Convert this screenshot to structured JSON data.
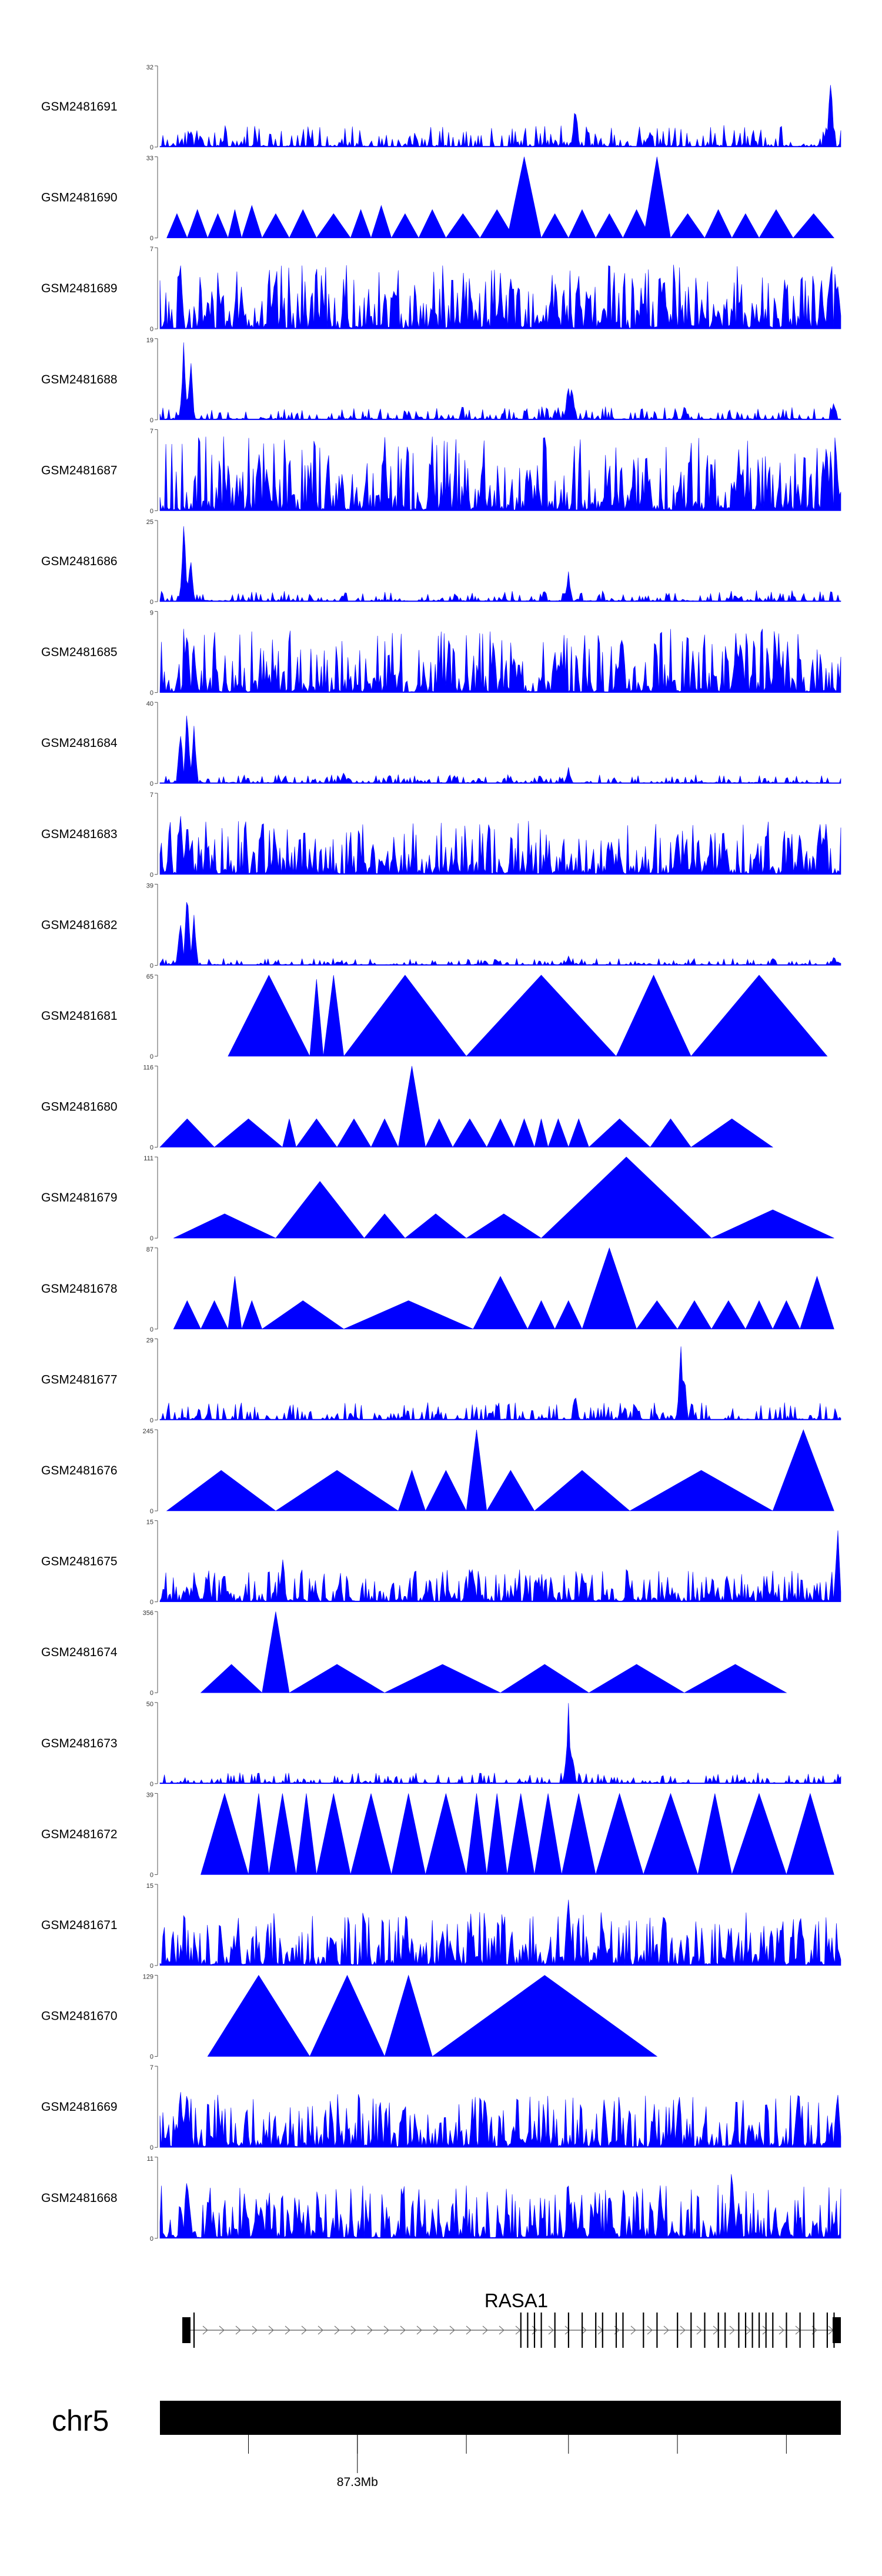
{
  "chart_data": {
    "type": "area",
    "description_units": "coverage signal per track along genomic coordinate (0-1 = fraction of plotted window)",
    "fill_color": "#0000FF",
    "tracks": [
      {
        "name": "GSM2481691",
        "ymax": 32,
        "style": "noise",
        "base": 0.1,
        "density": 0.7,
        "seed": 11,
        "peaks": [
          [
            0.06,
            0.18
          ],
          [
            0.61,
            0.62
          ],
          [
            0.72,
            0.22
          ],
          [
            0.985,
            1.0
          ]
        ]
      },
      {
        "name": "GSM2481690",
        "ymax": 33,
        "style": "triangles",
        "seed": 12,
        "tri": [
          [
            0.01,
            0.04,
            0.3
          ],
          [
            0.04,
            0.07,
            0.35
          ],
          [
            0.07,
            0.1,
            0.3
          ],
          [
            0.1,
            0.12,
            0.35
          ],
          [
            0.12,
            0.15,
            0.4
          ],
          [
            0.15,
            0.19,
            0.3
          ],
          [
            0.19,
            0.23,
            0.35
          ],
          [
            0.23,
            0.28,
            0.3
          ],
          [
            0.28,
            0.31,
            0.35
          ],
          [
            0.31,
            0.34,
            0.4
          ],
          [
            0.34,
            0.38,
            0.3
          ],
          [
            0.38,
            0.42,
            0.35
          ],
          [
            0.42,
            0.47,
            0.3
          ],
          [
            0.47,
            0.52,
            0.35
          ],
          [
            0.51,
            0.56,
            1.0
          ],
          [
            0.56,
            0.6,
            0.3
          ],
          [
            0.6,
            0.64,
            0.35
          ],
          [
            0.64,
            0.68,
            0.3
          ],
          [
            0.68,
            0.72,
            0.35
          ],
          [
            0.71,
            0.75,
            1.0
          ],
          [
            0.75,
            0.8,
            0.3
          ],
          [
            0.8,
            0.84,
            0.35
          ],
          [
            0.84,
            0.88,
            0.3
          ],
          [
            0.88,
            0.93,
            0.35
          ],
          [
            0.93,
            0.99,
            0.3
          ]
        ]
      },
      {
        "name": "GSM2481689",
        "ymax": 7,
        "style": "noise",
        "base": 0.3,
        "density": 1.0,
        "seed": 13,
        "peaks": [
          [
            0.03,
            0.95
          ],
          [
            0.12,
            0.6
          ],
          [
            0.5,
            0.7
          ],
          [
            0.74,
            0.9
          ]
        ]
      },
      {
        "name": "GSM2481688",
        "ymax": 19,
        "style": "noise",
        "base": 0.06,
        "density": 0.6,
        "seed": 14,
        "peaks": [
          [
            0.035,
            1.0
          ],
          [
            0.045,
            0.85
          ],
          [
            0.6,
            0.55
          ],
          [
            0.605,
            0.45
          ],
          [
            0.99,
            0.25
          ]
        ]
      },
      {
        "name": "GSM2481687",
        "ymax": 7,
        "style": "noise",
        "base": 0.35,
        "density": 1.0,
        "seed": 15,
        "peaks": [
          [
            0.33,
            0.9
          ],
          [
            0.85,
            0.95
          ]
        ]
      },
      {
        "name": "GSM2481686",
        "ymax": 25,
        "style": "noise",
        "base": 0.05,
        "density": 0.6,
        "seed": 16,
        "peaks": [
          [
            0.035,
            1.0
          ],
          [
            0.045,
            0.7
          ],
          [
            0.6,
            0.38
          ]
        ]
      },
      {
        "name": "GSM2481685",
        "ymax": 9,
        "style": "noise",
        "base": 0.3,
        "density": 1.0,
        "seed": 17,
        "peaks": [
          [
            0.04,
            0.95
          ],
          [
            0.52,
            0.6
          ]
        ]
      },
      {
        "name": "GSM2481684",
        "ymax": 40,
        "style": "noise",
        "base": 0.04,
        "density": 0.6,
        "seed": 18,
        "peaks": [
          [
            0.03,
            0.75
          ],
          [
            0.04,
            1.0
          ],
          [
            0.05,
            0.8
          ],
          [
            0.27,
            0.15
          ],
          [
            0.6,
            0.22
          ]
        ]
      },
      {
        "name": "GSM2481683",
        "ymax": 7,
        "style": "noise",
        "base": 0.25,
        "density": 1.0,
        "seed": 19,
        "peaks": [
          [
            0.03,
            1.0
          ],
          [
            0.04,
            0.8
          ],
          [
            0.76,
            0.75
          ],
          [
            0.94,
            0.7
          ]
        ]
      },
      {
        "name": "GSM2481682",
        "ymax": 39,
        "style": "noise",
        "base": 0.03,
        "density": 0.5,
        "seed": 20,
        "peaks": [
          [
            0.03,
            0.7
          ],
          [
            0.04,
            1.0
          ],
          [
            0.05,
            0.7
          ],
          [
            0.6,
            0.12
          ],
          [
            0.99,
            0.12
          ]
        ]
      },
      {
        "name": "GSM2481681",
        "ymax": 65,
        "style": "triangles",
        "seed": 21,
        "tri": [
          [
            0.1,
            0.22,
            1.0
          ],
          [
            0.22,
            0.24,
            0.95
          ],
          [
            0.24,
            0.27,
            1.0
          ],
          [
            0.27,
            0.45,
            1.0
          ],
          [
            0.45,
            0.67,
            1.0
          ],
          [
            0.67,
            0.78,
            1.0
          ],
          [
            0.78,
            0.98,
            1.0
          ]
        ]
      },
      {
        "name": "GSM2481680",
        "ymax": 116,
        "style": "triangles",
        "seed": 22,
        "tri": [
          [
            0.0,
            0.08,
            0.35
          ],
          [
            0.08,
            0.18,
            0.35
          ],
          [
            0.18,
            0.2,
            0.35
          ],
          [
            0.2,
            0.26,
            0.35
          ],
          [
            0.26,
            0.31,
            0.35
          ],
          [
            0.31,
            0.35,
            0.35
          ],
          [
            0.35,
            0.39,
            1.0
          ],
          [
            0.39,
            0.43,
            0.35
          ],
          [
            0.43,
            0.48,
            0.35
          ],
          [
            0.48,
            0.52,
            0.35
          ],
          [
            0.52,
            0.55,
            0.35
          ],
          [
            0.55,
            0.57,
            0.35
          ],
          [
            0.57,
            0.6,
            0.35
          ],
          [
            0.6,
            0.63,
            0.35
          ],
          [
            0.63,
            0.72,
            0.35
          ],
          [
            0.72,
            0.78,
            0.35
          ],
          [
            0.78,
            0.9,
            0.35
          ]
        ]
      },
      {
        "name": "GSM2481679",
        "ymax": 111,
        "style": "triangles",
        "seed": 23,
        "tri": [
          [
            0.02,
            0.17,
            0.3
          ],
          [
            0.17,
            0.3,
            0.7
          ],
          [
            0.3,
            0.36,
            0.3
          ],
          [
            0.36,
            0.45,
            0.3
          ],
          [
            0.45,
            0.56,
            0.3
          ],
          [
            0.56,
            0.81,
            1.0
          ],
          [
            0.81,
            0.99,
            0.35
          ]
        ]
      },
      {
        "name": "GSM2481678",
        "ymax": 87,
        "style": "triangles",
        "seed": 24,
        "tri": [
          [
            0.02,
            0.06,
            0.35
          ],
          [
            0.06,
            0.1,
            0.35
          ],
          [
            0.1,
            0.12,
            0.65
          ],
          [
            0.12,
            0.15,
            0.35
          ],
          [
            0.15,
            0.27,
            0.35
          ],
          [
            0.27,
            0.46,
            0.35
          ],
          [
            0.46,
            0.54,
            0.65
          ],
          [
            0.54,
            0.58,
            0.35
          ],
          [
            0.58,
            0.62,
            0.35
          ],
          [
            0.62,
            0.7,
            1.0
          ],
          [
            0.7,
            0.76,
            0.35
          ],
          [
            0.76,
            0.81,
            0.35
          ],
          [
            0.81,
            0.86,
            0.35
          ],
          [
            0.86,
            0.9,
            0.35
          ],
          [
            0.9,
            0.94,
            0.35
          ],
          [
            0.94,
            0.99,
            0.65
          ]
        ]
      },
      {
        "name": "GSM2481677",
        "ymax": 29,
        "style": "noise",
        "base": 0.08,
        "density": 0.6,
        "seed": 25,
        "peaks": [
          [
            0.61,
            0.42
          ],
          [
            0.765,
            1.0
          ],
          [
            0.77,
            0.6
          ]
        ]
      },
      {
        "name": "GSM2481676",
        "ymax": 245,
        "style": "triangles",
        "seed": 26,
        "tri": [
          [
            0.01,
            0.17,
            0.5
          ],
          [
            0.17,
            0.35,
            0.5
          ],
          [
            0.35,
            0.39,
            0.5
          ],
          [
            0.39,
            0.45,
            0.5
          ],
          [
            0.45,
            0.48,
            1.0
          ],
          [
            0.48,
            0.55,
            0.5
          ],
          [
            0.55,
            0.69,
            0.5
          ],
          [
            0.69,
            0.9,
            0.5
          ],
          [
            0.9,
            0.99,
            1.0
          ]
        ]
      },
      {
        "name": "GSM2481675",
        "ymax": 15,
        "style": "noise",
        "base": 0.15,
        "density": 0.9,
        "seed": 27,
        "peaks": [
          [
            0.18,
            0.6
          ],
          [
            0.46,
            0.4
          ],
          [
            0.995,
            1.0
          ]
        ]
      },
      {
        "name": "GSM2481674",
        "ymax": 356,
        "style": "triangles",
        "seed": 28,
        "tri": [
          [
            0.06,
            0.15,
            0.35
          ],
          [
            0.15,
            0.19,
            1.0
          ],
          [
            0.19,
            0.33,
            0.35
          ],
          [
            0.33,
            0.5,
            0.35
          ],
          [
            0.5,
            0.63,
            0.35
          ],
          [
            0.63,
            0.77,
            0.35
          ],
          [
            0.77,
            0.92,
            0.35
          ]
        ]
      },
      {
        "name": "GSM2481673",
        "ymax": 50,
        "style": "noise",
        "base": 0.05,
        "density": 0.6,
        "seed": 29,
        "peaks": [
          [
            0.6,
            1.0
          ],
          [
            0.605,
            0.5
          ]
        ]
      },
      {
        "name": "GSM2481672",
        "ymax": 39,
        "style": "triangles",
        "seed": 30,
        "tri": [
          [
            0.06,
            0.13,
            1.0
          ],
          [
            0.13,
            0.16,
            1.0
          ],
          [
            0.16,
            0.2,
            1.0
          ],
          [
            0.2,
            0.23,
            1.0
          ],
          [
            0.23,
            0.28,
            1.0
          ],
          [
            0.28,
            0.34,
            1.0
          ],
          [
            0.34,
            0.39,
            1.0
          ],
          [
            0.39,
            0.45,
            1.0
          ],
          [
            0.45,
            0.48,
            1.0
          ],
          [
            0.48,
            0.51,
            1.0
          ],
          [
            0.51,
            0.55,
            1.0
          ],
          [
            0.55,
            0.59,
            1.0
          ],
          [
            0.59,
            0.64,
            1.0
          ],
          [
            0.64,
            0.71,
            1.0
          ],
          [
            0.71,
            0.79,
            1.0
          ],
          [
            0.79,
            0.84,
            1.0
          ],
          [
            0.84,
            0.92,
            1.0
          ],
          [
            0.92,
            0.99,
            1.0
          ]
        ]
      },
      {
        "name": "GSM2481671",
        "ymax": 15,
        "style": "noise",
        "base": 0.25,
        "density": 1.0,
        "seed": 31,
        "peaks": [
          [
            0.6,
            1.0
          ],
          [
            0.74,
            0.9
          ],
          [
            0.94,
            0.85
          ]
        ]
      },
      {
        "name": "GSM2481670",
        "ymax": 129,
        "style": "triangles",
        "seed": 32,
        "tri": [
          [
            0.07,
            0.22,
            1.0
          ],
          [
            0.22,
            0.33,
            1.0
          ],
          [
            0.33,
            0.4,
            1.0
          ],
          [
            0.4,
            0.73,
            1.0
          ]
        ]
      },
      {
        "name": "GSM2481669",
        "ymax": 7,
        "style": "noise",
        "base": 0.25,
        "density": 1.0,
        "seed": 33,
        "peaks": [
          [
            0.03,
            0.8
          ],
          [
            0.04,
            0.9
          ],
          [
            0.995,
            0.95
          ]
        ]
      },
      {
        "name": "GSM2481668",
        "ymax": 11,
        "style": "noise",
        "base": 0.25,
        "density": 1.0,
        "seed": 34,
        "peaks": [
          [
            0.04,
            1.0
          ],
          [
            0.6,
            0.55
          ],
          [
            0.84,
            0.95
          ]
        ]
      }
    ],
    "gene": {
      "name": "RASA1",
      "strand": "+",
      "exons": [
        0.05,
        0.53,
        0.54,
        0.55,
        0.56,
        0.58,
        0.6,
        0.62,
        0.64,
        0.65,
        0.67,
        0.68,
        0.71,
        0.73,
        0.76,
        0.78,
        0.8,
        0.82,
        0.83,
        0.85,
        0.86,
        0.87,
        0.88,
        0.89,
        0.9,
        0.92,
        0.94,
        0.96,
        0.98,
        0.99
      ]
    },
    "chromosome": {
      "name": "chr5",
      "tick_fractions": [
        0.13,
        0.29,
        0.45,
        0.6,
        0.76,
        0.92
      ],
      "labeled_tick_fraction": 0.29,
      "labeled_tick_text": "87.3Mb"
    }
  }
}
